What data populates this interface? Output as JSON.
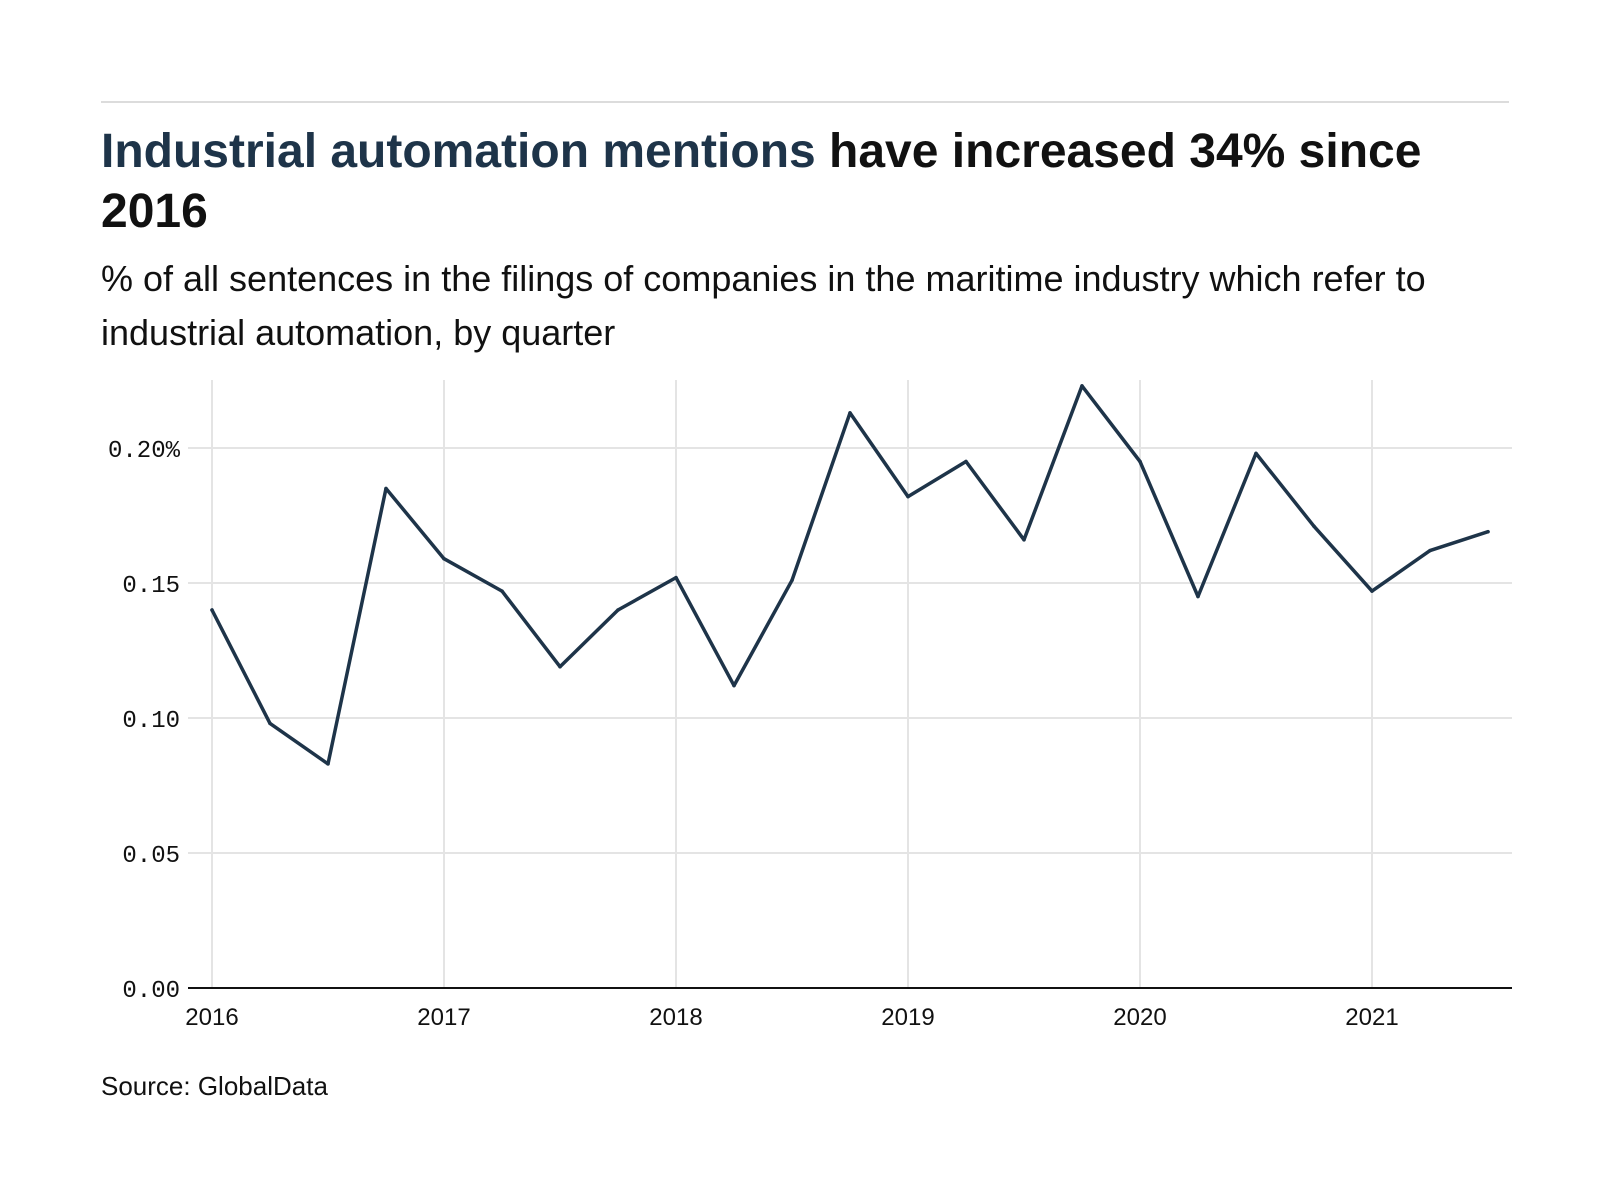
{
  "header": {
    "title_highlight": "Industrial automation mentions",
    "title_rest": " have increased 34% since 2016",
    "subtitle": "% of all sentences in the filings of companies in the maritime industry which refer to industrial automation, by quarter"
  },
  "footer": {
    "source": "Source: GlobalData"
  },
  "colors": {
    "line": "#1e3449",
    "highlight": "#1e3449",
    "grid": "#e4e4e4",
    "axis": "#111111"
  },
  "chart_data": {
    "type": "line",
    "title": "Industrial automation mentions have increased 34% since 2016",
    "subtitle": "% of all sentences in the filings of companies in the maritime industry which refer to industrial automation, by quarter",
    "xlabel": "",
    "ylabel": "",
    "x": [
      "2016 Q1",
      "2016 Q2",
      "2016 Q3",
      "2016 Q4",
      "2017 Q1",
      "2017 Q2",
      "2017 Q3",
      "2017 Q4",
      "2018 Q1",
      "2018 Q2",
      "2018 Q3",
      "2018 Q4",
      "2019 Q1",
      "2019 Q2",
      "2019 Q3",
      "2019 Q4",
      "2020 Q1",
      "2020 Q2",
      "2020 Q3",
      "2020 Q4",
      "2021 Q1",
      "2021 Q2",
      "2021 Q3"
    ],
    "series": [
      {
        "values": [
          0.14,
          0.098,
          0.083,
          0.185,
          0.159,
          0.147,
          0.119,
          0.14,
          0.152,
          0.112,
          0.151,
          0.213,
          0.182,
          0.195,
          0.166,
          0.223,
          0.195,
          0.145,
          0.198,
          0.171,
          0.147,
          0.162,
          0.169
        ]
      }
    ],
    "x_ticks": [
      "2016",
      "2017",
      "2018",
      "2019",
      "2020",
      "2021"
    ],
    "y_ticks": [
      "0.00",
      "0.05",
      "0.10",
      "0.15",
      "0.20%"
    ],
    "ylim": [
      0,
      0.223
    ],
    "grid": true,
    "legend": "none"
  }
}
